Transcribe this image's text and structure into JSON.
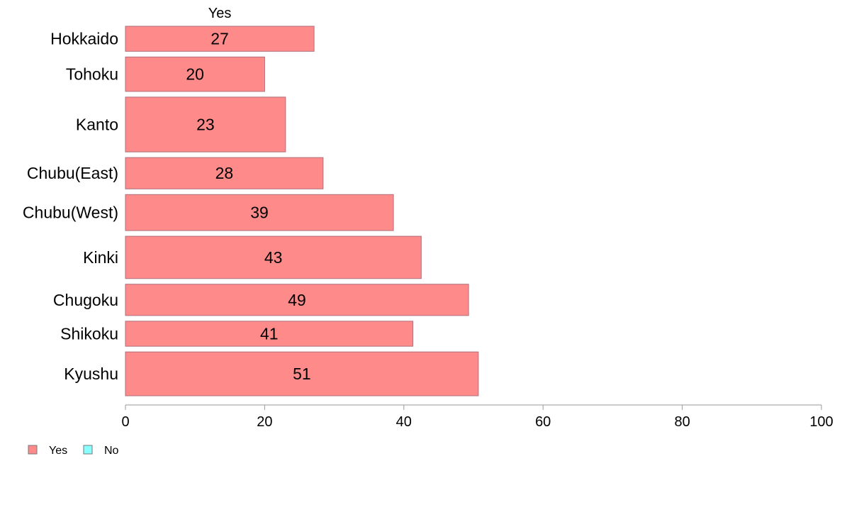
{
  "chart_data": {
    "type": "bar",
    "orientation": "horizontal",
    "stacked": true,
    "title": "",
    "xlabel": "",
    "ylabel": "",
    "segment_header": "Yes",
    "categories": [
      "Hokkaido",
      "Tohoku",
      "Kanto",
      "Chubu(East)",
      "Chubu(West)",
      "Kinki",
      "Chugoku",
      "Shikoku",
      "Kyushu"
    ],
    "series": [
      {
        "name": "Yes",
        "color": "#ff8a8a",
        "values": [
          27.1,
          20.0,
          23.0,
          28.4,
          38.5,
          42.5,
          49.3,
          41.3,
          50.7
        ],
        "data_labels": [
          "27",
          "20",
          "23",
          "28",
          "39",
          "43",
          "49",
          "41",
          "51"
        ]
      },
      {
        "name": "No",
        "color": "#8affff",
        "values": [
          0,
          0,
          0,
          0,
          0,
          0,
          0,
          0,
          0
        ],
        "data_labels": []
      }
    ],
    "bar_weights": [
      0.8,
      1.1,
      1.75,
      1.0,
      1.15,
      1.35,
      1.0,
      0.8,
      1.4
    ],
    "xlim": [
      0,
      100
    ],
    "xticks": [
      0,
      20,
      40,
      60,
      80,
      100
    ],
    "grid": false,
    "legend_position": "bottom-left"
  }
}
